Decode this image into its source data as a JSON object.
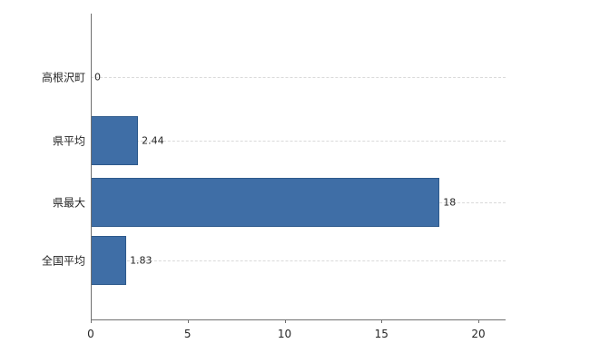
{
  "chart_data": {
    "type": "bar",
    "orientation": "horizontal",
    "title": "",
    "categories": [
      "高根沢町",
      "県平均",
      "県最大",
      "全国平均"
    ],
    "values": [
      0,
      2.44,
      18,
      1.83
    ],
    "value_labels": [
      "0",
      "2.44",
      "18",
      "1.83"
    ],
    "x_ticks": [
      "0",
      "5",
      "10",
      "15",
      "20"
    ],
    "x_tick_values": [
      0,
      5,
      10,
      15,
      20
    ],
    "xlim": [
      0,
      20
    ],
    "legend": "none",
    "grid": "dashed-horizontal-per-category",
    "colors": {
      "bar_fill": "#3f6ea6",
      "bar_border": "#2e5a8c",
      "axis": "#707070",
      "gridline": "#d9d9d9",
      "text": "#262626",
      "background": "#ffffff"
    }
  }
}
